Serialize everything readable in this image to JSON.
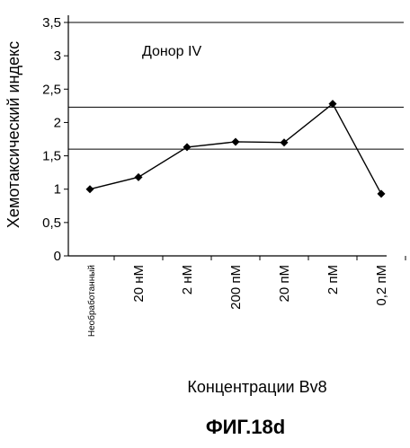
{
  "chart_data": {
    "type": "line",
    "title": "",
    "annotation": "Донор IV",
    "xlabel": "Концентрации Bv8",
    "ylabel": "Хемотаксический индекс",
    "categories": [
      "Необработанный",
      "20 нМ",
      "2 нМ",
      "200 пМ",
      "20 пМ",
      "2 пМ",
      "0,2 пМ"
    ],
    "series": [
      {
        "values": [
          1.0,
          1.18,
          1.63,
          1.71,
          1.7,
          2.28,
          0.93
        ]
      }
    ],
    "yticks": [
      "0",
      "0,5",
      "1",
      "1,5",
      "2",
      "2,5",
      "3",
      "3,5"
    ],
    "ylim": [
      0,
      3.5
    ],
    "reference_lines": [
      3.5,
      2.23,
      1.6
    ],
    "grid": false,
    "legend": "none",
    "marker": "diamond",
    "colors": {
      "line": "#000000",
      "marker": "#000000"
    }
  },
  "figure_caption": "ФИГ.18d"
}
